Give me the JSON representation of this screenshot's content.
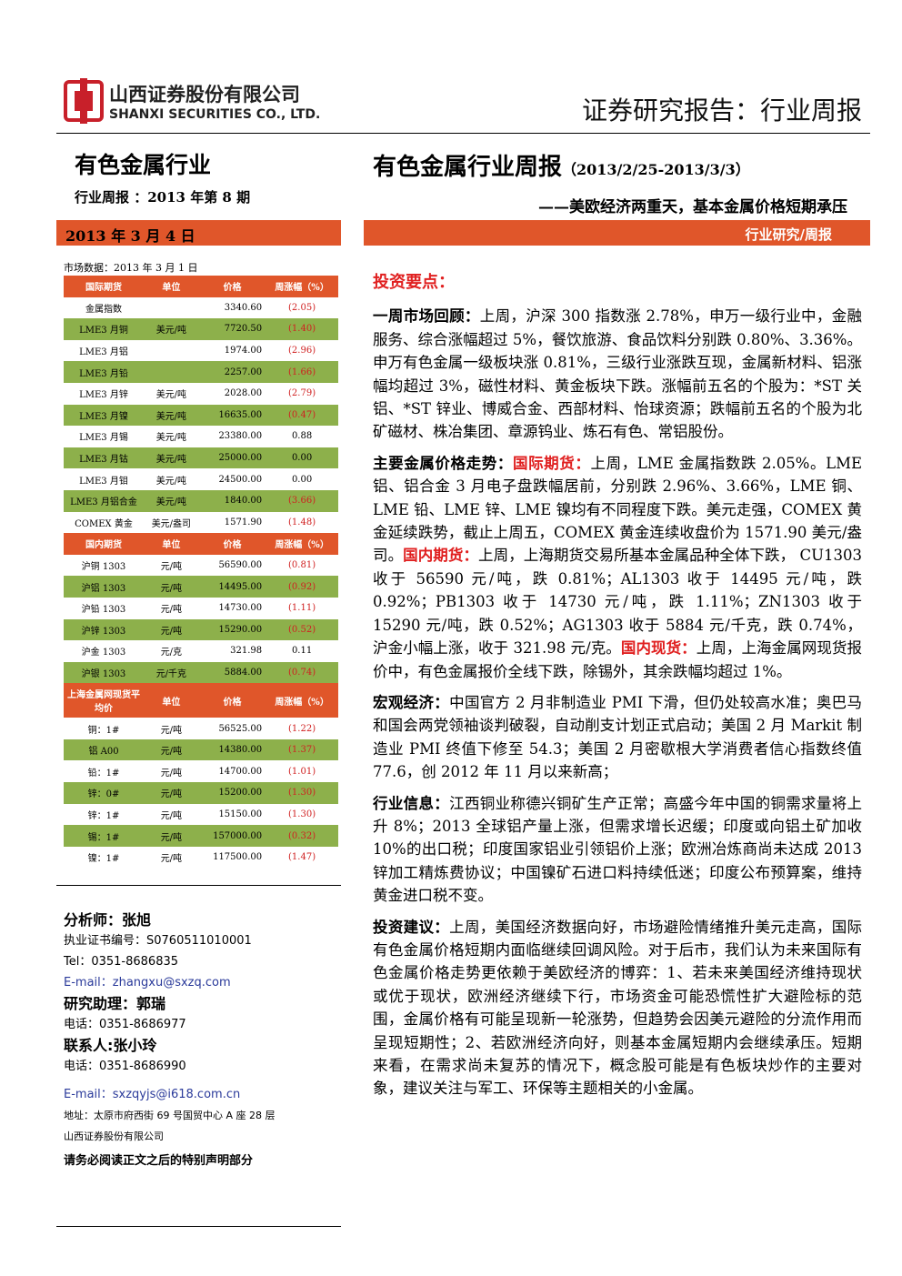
{
  "header": {
    "company_cn": "山西证券股份有限公司",
    "company_en": "SHANXI SECURITIES CO., LTD.",
    "report_type": "证券研究报告：行业周报"
  },
  "sidebar": {
    "industry": "有色金属行业",
    "issue": "行业周报 ：2013 年第 8 期",
    "date": "2013 年 3 月 4 日"
  },
  "title": {
    "main": "有色金属行业周报",
    "period": "（2013/2/25-2013/3/3）",
    "subtitle": "——美欧经济两重天，基本金属价格短期承压",
    "category": "行业研究/周报"
  },
  "market_table": {
    "caption": "市场数据：2013 年 3 月 1 日",
    "sections": [
      {
        "header": [
          "国际期货",
          "单位",
          "价格",
          "周涨幅（%）"
        ],
        "rows": [
          [
            "金属指数",
            null,
            "3340.60",
            "(2.05)"
          ],
          [
            "LME3 月铜",
            "美元/吨",
            "7720.50",
            "(1.40)"
          ],
          [
            "LME3 月铝",
            null,
            "1974.00",
            "(2.96)"
          ],
          [
            "LME3 月铅",
            null,
            "2257.00",
            "(1.66)"
          ],
          [
            "LME3 月锌",
            "美元/吨",
            "2028.00",
            "(2.79)"
          ],
          [
            "LME3 月镍",
            "美元/吨",
            "16635.00",
            "(0.47)"
          ],
          [
            "LME3 月锡",
            "美元/吨",
            "23380.00",
            "0.88"
          ],
          [
            "LME3 月钴",
            "美元/吨",
            "25000.00",
            "0.00"
          ],
          [
            "LME3 月钼",
            "美元/吨",
            "24500.00",
            "0.00"
          ],
          [
            "LME3 月铝合金",
            "美元/吨",
            "1840.00",
            "(3.66)"
          ],
          [
            "COMEX 黄金",
            "美元/盎司",
            "1571.90",
            "(1.48)"
          ]
        ]
      },
      {
        "header": [
          "国内期货",
          "单位",
          "价格",
          "周涨幅（%）"
        ],
        "rows": [
          [
            "沪铜 1303",
            "元/吨",
            "56590.00",
            "(0.81)"
          ],
          [
            "沪铝 1303",
            "元/吨",
            "14495.00",
            "(0.92)"
          ],
          [
            "沪铅 1303",
            "元/吨",
            "14730.00",
            "(1.11)"
          ],
          [
            "沪锌 1303",
            "元/吨",
            "15290.00",
            "(0.52)"
          ],
          [
            "沪金 1303",
            "元/克",
            "321.98",
            "0.11"
          ],
          [
            "沪银 1303",
            "元/千克",
            "5884.00",
            "(0.74)"
          ]
        ]
      },
      {
        "header": [
          "上海金属网现货平均价",
          "单位",
          "价格",
          "周涨幅（%）"
        ],
        "rows": [
          [
            "铜：1#",
            "元/吨",
            "56525.00",
            "(1.22)"
          ],
          [
            "铝 A00",
            "元/吨",
            "14380.00",
            "(1.37)"
          ],
          [
            "铅：1#",
            "元/吨",
            "14700.00",
            "(1.01)"
          ],
          [
            "锌：0#",
            "元/吨",
            "15200.00",
            "(1.30)"
          ],
          [
            "锌：1#",
            "元/吨",
            "15150.00",
            "(1.30)"
          ],
          [
            "锡：1#",
            "元/吨",
            "157000.00",
            "(0.32)"
          ],
          [
            "镍：1#",
            "元/吨",
            "117500.00",
            "(1.47)"
          ]
        ]
      }
    ]
  },
  "contacts": {
    "analyst": "分析师：张旭",
    "analyst_cert": "执业证书编号：S0760511010001",
    "analyst_tel": "Tel：0351-8686835",
    "analyst_email": "E-mail：zhangxu@sxzq.com",
    "assistant": "研究助理：郭瑞",
    "assistant_tel": "电话：0351-8686977",
    "contact": "联系人:张小玲",
    "contact_tel": "电话：0351-8686990",
    "contact_email": "E-mail：sxzqyjs@i618.com.cn",
    "address": "地址：太原市府西街 69 号国贸中心 A 座 28 层",
    "company": "山西证券股份有限公司",
    "notice": "请务必阅读正文之后的特别声明部分"
  },
  "body": {
    "heading": "投资要点：",
    "p1": {
      "lead": "一周市场回顾：",
      "text": "上周，沪深 300 指数涨 2.78%，申万一级行业中，金融服务、综合涨幅超过 5%，餐饮旅游、食品饮料分别跌 0.80%、3.36%。申万有色金属一级板块涨 0.81%，三级行业涨跌互现，金属新材料、铝涨幅均超过 3%，磁性材料、黄金板块下跌。涨幅前五名的个股为：*ST 关铝、*ST 锌业、博威合金、西部材料、怡球资源；跌幅前五名的个股为北矿磁材、株冶集团、章源钨业、炼石有色、常铝股份。"
    },
    "p2": {
      "lead": "主要金属价格走势：",
      "tag1": "国际期货：",
      "text1": "上周，LME 金属指数跌 2.05%。LME 铝、铝合金 3 月电子盘跌幅居前，分别跌 2.96%、3.66%，LME 铜、LME 铅、LME 锌、LME 镍均有不同程度下跌。美元走强，COMEX 黄金延续跌势，截止上周五，COMEX 黄金连续收盘价为 1571.90 美元/盎司。",
      "tag2": "国内期货：",
      "text2": "上周，上海期货交易所基本金属品种全体下跌， CU1303 收于 56590 元/吨，跌 0.81%；AL1303 收于 14495 元/吨，跌 0.92%；PB1303 收于 14730 元/吨，跌 1.11%；ZN1303 收于 15290 元/吨，跌 0.52%；AG1303 收于 5884 元/千克，跌 0.74%，沪金小幅上涨，收于 321.98 元/克。",
      "tag3": "国内现货：",
      "text3": "上周，上海金属网现货报价中，有色金属报价全线下跌，除锡外，其余跌幅均超过 1%。"
    },
    "p3": {
      "lead": "宏观经济：",
      "text": "中国官方 2 月非制造业 PMI 下滑，但仍处较高水准；奥巴马和国会两党领袖谈判破裂，自动削支计划正式启动；美国 2 月 Markit 制造业 PMI 终值下修至 54.3；美国 2 月密歇根大学消费者信心指数终值 77.6，创 2012 年 11 月以来新高；"
    },
    "p4": {
      "lead": "行业信息：",
      "text": "江西铜业称德兴铜矿生产正常；高盛今年中国的铜需求量将上升 8%；2013 全球铝产量上涨，但需求增长迟缓；印度或向铝土矿加收 10%的出口税；印度国家铝业引领铝价上涨；欧洲冶炼商尚未达成 2013 锌加工精炼费协议；中国镍矿石进口料持续低迷；印度公布预算案，维持黄金进口税不变。"
    },
    "p5": {
      "lead": "投资建议：",
      "text": "上周，美国经济数据向好，市场避险情绪推升美元走高，国际有色金属价格短期内面临继续回调风险。对于后市，我们认为未来国际有色金属价格走势更依赖于美欧经济的博弈：1、若未来美国经济维持现状或优于现状，欧洲经济继续下行，市场资金可能恐慌性扩大避险标的范围，金属价格有可能呈现新一轮涨势，但趋势会因美元避险的分流作用而呈现短期性；2、若欧洲经济向好，则基本金属短期内会继续承压。短期来看，在需求尚未复苏的情况下，概念股可能是有色板块炒作的主要对象，建议关注与军工、环保等主题相关的小金属。"
    }
  }
}
